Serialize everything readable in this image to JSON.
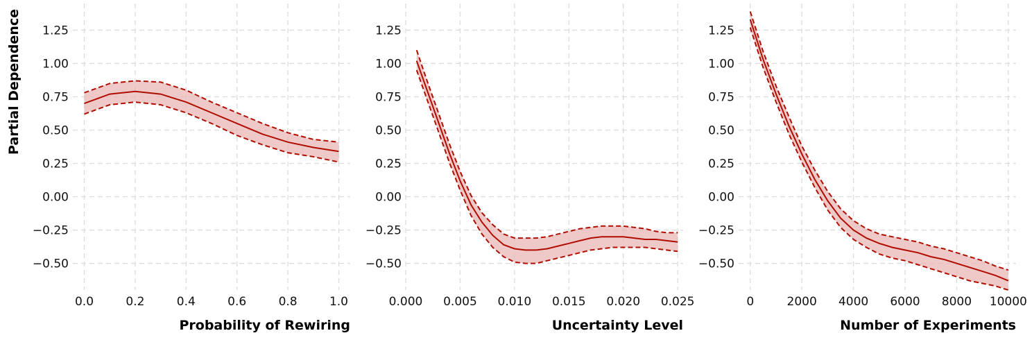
{
  "ylabel": "Partial Dependence",
  "colors": {
    "line": "#b00c00",
    "band": "#e8b7b5",
    "grid": "#dcdcdc"
  },
  "chart_data": [
    {
      "type": "line",
      "xlabel": "Probability of Rewiring",
      "ylabel": "Partial Dependence",
      "xlim": [
        -0.045,
        1.045
      ],
      "ylim": [
        -0.7,
        1.45
      ],
      "xticks": [
        0.0,
        0.2,
        0.4,
        0.6,
        0.8,
        1.0
      ],
      "xtick_labels": [
        "0.0",
        "0.2",
        "0.4",
        "0.6",
        "0.8",
        "1.0"
      ],
      "yticks": [
        -0.5,
        -0.25,
        0.0,
        0.25,
        0.5,
        0.75,
        1.0,
        1.25
      ],
      "ytick_labels": [
        "−0.50",
        "−0.25",
        "0.00",
        "0.25",
        "0.50",
        "0.75",
        "1.00",
        "1.25"
      ],
      "grid": true,
      "x": [
        0.0,
        0.1,
        0.2,
        0.3,
        0.4,
        0.5,
        0.6,
        0.7,
        0.8,
        0.9,
        1.0
      ],
      "mean": [
        0.7,
        0.77,
        0.79,
        0.77,
        0.71,
        0.63,
        0.55,
        0.47,
        0.41,
        0.37,
        0.34
      ],
      "lower": [
        0.62,
        0.69,
        0.71,
        0.69,
        0.63,
        0.55,
        0.46,
        0.39,
        0.33,
        0.3,
        0.26
      ],
      "upper": [
        0.78,
        0.85,
        0.87,
        0.86,
        0.8,
        0.71,
        0.63,
        0.55,
        0.48,
        0.43,
        0.41
      ]
    },
    {
      "type": "line",
      "xlabel": "Uncertainty Level",
      "ylabel": "",
      "xlim": [
        0.0,
        0.0255
      ],
      "ylim": [
        -0.7,
        1.45
      ],
      "xticks": [
        0.0,
        0.005,
        0.01,
        0.015,
        0.02,
        0.025
      ],
      "xtick_labels": [
        "0.000",
        "0.005",
        "0.010",
        "0.015",
        "0.020",
        "0.025"
      ],
      "yticks": [
        -0.5,
        -0.25,
        0.0,
        0.25,
        0.5,
        0.75,
        1.0,
        1.25
      ],
      "ytick_labels": [
        "−0.50",
        "−0.25",
        "0.00",
        "0.25",
        "0.50",
        "0.75",
        "1.00",
        "1.25"
      ],
      "grid": true,
      "x": [
        0.001,
        0.002,
        0.003,
        0.004,
        0.005,
        0.006,
        0.007,
        0.008,
        0.009,
        0.01,
        0.011,
        0.012,
        0.013,
        0.014,
        0.015,
        0.016,
        0.017,
        0.018,
        0.019,
        0.02,
        0.021,
        0.022,
        0.023,
        0.024,
        0.025
      ],
      "mean": [
        1.02,
        0.79,
        0.56,
        0.33,
        0.12,
        -0.06,
        -0.19,
        -0.29,
        -0.36,
        -0.39,
        -0.4,
        -0.4,
        -0.39,
        -0.37,
        -0.35,
        -0.33,
        -0.31,
        -0.3,
        -0.3,
        -0.3,
        -0.31,
        -0.32,
        -0.32,
        -0.33,
        -0.34
      ],
      "lower": [
        0.95,
        0.72,
        0.49,
        0.26,
        0.05,
        -0.14,
        -0.28,
        -0.38,
        -0.45,
        -0.49,
        -0.5,
        -0.5,
        -0.48,
        -0.46,
        -0.44,
        -0.42,
        -0.4,
        -0.39,
        -0.38,
        -0.38,
        -0.38,
        -0.38,
        -0.39,
        -0.4,
        -0.41
      ],
      "upper": [
        1.1,
        0.86,
        0.63,
        0.4,
        0.19,
        0.01,
        -0.12,
        -0.21,
        -0.28,
        -0.31,
        -0.31,
        -0.31,
        -0.3,
        -0.28,
        -0.26,
        -0.24,
        -0.23,
        -0.22,
        -0.22,
        -0.22,
        -0.23,
        -0.24,
        -0.26,
        -0.27,
        -0.27
      ]
    },
    {
      "type": "line",
      "xlabel": "Number of Experiments",
      "ylabel": "",
      "xlim": [
        -450,
        10300
      ],
      "ylim": [
        -0.7,
        1.45
      ],
      "xticks": [
        0,
        2000,
        4000,
        6000,
        8000,
        10000
      ],
      "xtick_labels": [
        "0",
        "2000",
        "4000",
        "6000",
        "8000",
        "10000"
      ],
      "yticks": [
        -0.5,
        -0.25,
        0.0,
        0.25,
        0.5,
        0.75,
        1.0,
        1.25
      ],
      "ytick_labels": [
        "−0.50",
        "−0.25",
        "0.00",
        "0.25",
        "0.50",
        "0.75",
        "1.00",
        "1.25"
      ],
      "grid": true,
      "x": [
        0,
        500,
        1000,
        1500,
        2000,
        2500,
        3000,
        3500,
        4000,
        4500,
        5000,
        5500,
        6000,
        6500,
        7000,
        7500,
        8000,
        8500,
        9000,
        9500,
        10000
      ],
      "mean": [
        1.33,
        1.03,
        0.77,
        0.53,
        0.32,
        0.13,
        -0.03,
        -0.16,
        -0.25,
        -0.31,
        -0.35,
        -0.38,
        -0.4,
        -0.42,
        -0.45,
        -0.47,
        -0.5,
        -0.53,
        -0.56,
        -0.59,
        -0.63
      ],
      "lower": [
        1.27,
        0.97,
        0.71,
        0.47,
        0.26,
        0.07,
        -0.1,
        -0.23,
        -0.32,
        -0.38,
        -0.43,
        -0.46,
        -0.48,
        -0.51,
        -0.54,
        -0.57,
        -0.6,
        -0.63,
        -0.65,
        -0.67,
        -0.7
      ],
      "upper": [
        1.39,
        1.09,
        0.83,
        0.6,
        0.38,
        0.2,
        0.04,
        -0.09,
        -0.18,
        -0.24,
        -0.28,
        -0.3,
        -0.32,
        -0.34,
        -0.37,
        -0.39,
        -0.42,
        -0.45,
        -0.48,
        -0.52,
        -0.55
      ]
    }
  ]
}
